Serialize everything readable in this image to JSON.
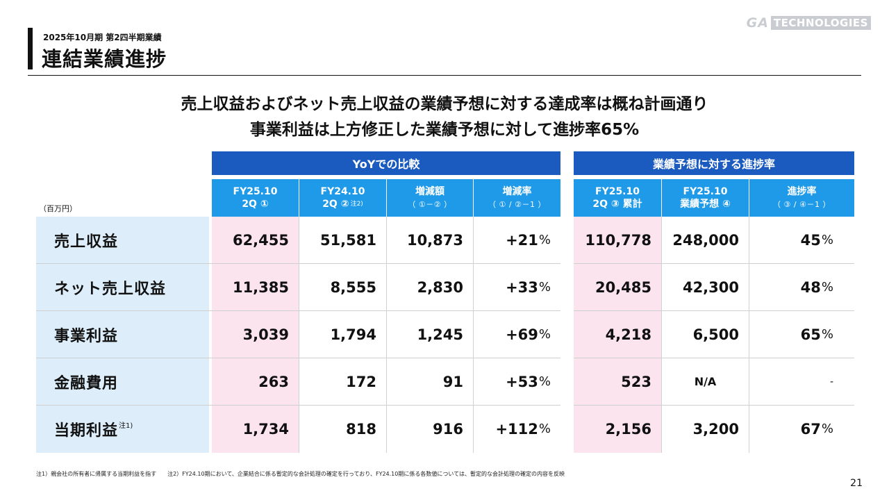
{
  "header": {
    "subtitle": "2025年10月期 第2四半期業績",
    "title": "連結業績進捗",
    "logo_ga": "GA",
    "logo_tech": "TECHNOLOGIES"
  },
  "headline": {
    "line1": "売上収益およびネット売上収益の業績予想に対する達成率は概ね計画通り",
    "line2": "事業利益は上方修正した業績予想に対して進捗率65%"
  },
  "table": {
    "unit": "（百万円）",
    "group_yoy": "YoYでの比較",
    "group_progress": "業績予想に対する進捗率",
    "columns": [
      {
        "line1": "FY25.10",
        "line2": "2Q ①",
        "note": ""
      },
      {
        "line1": "FY24.10",
        "line2": "2Q ②",
        "note": "注2)"
      },
      {
        "line1": "増減額",
        "line2": "（ ①－② ）",
        "note": ""
      },
      {
        "line1": "増減率",
        "line2": "（ ① / ②－1 ）",
        "note": ""
      },
      {
        "line1": "FY25.10",
        "line2": "2Q ③ 累計",
        "note": ""
      },
      {
        "line1": "FY25.10",
        "line2": "業績予想 ④",
        "note": ""
      },
      {
        "line1": "進捗率",
        "line2": "（ ③ / ④－1 ）",
        "note": ""
      }
    ],
    "rows": [
      {
        "label": "売上収益",
        "note": "",
        "values": [
          "62,455",
          "51,581",
          "10,873",
          "+21",
          "110,778",
          "248,000",
          "45"
        ]
      },
      {
        "label": "ネット売上収益",
        "note": "",
        "values": [
          "11,385",
          "8,555",
          "2,830",
          "+33",
          "20,485",
          "42,300",
          "48"
        ]
      },
      {
        "label": "事業利益",
        "note": "",
        "values": [
          "3,039",
          "1,794",
          "1,245",
          "+69",
          "4,218",
          "6,500",
          "65"
        ]
      },
      {
        "label": "金融費用",
        "note": "",
        "values": [
          "263",
          "172",
          "91",
          "+53",
          "523",
          "N/A",
          "-"
        ]
      },
      {
        "label": "当期利益",
        "note": "注1)",
        "values": [
          "1,734",
          "818",
          "916",
          "+112",
          "2,156",
          "3,200",
          "67"
        ]
      }
    ],
    "percent_sign": "%"
  },
  "footnote": "注1）親会社の所有者に帰属する当期利益を指す　　注2）FY24.10期において、企業結合に係る暫定的な会計処理の確定を行っており、FY24.10期に係る各数値については、暫定的な会計処理の確定の内容を反映",
  "page_number": "21",
  "colors": {
    "band": "#1b5bbf",
    "header": "#1e9ae8",
    "row_label_bg": "#ddeefa",
    "highlight_col": "#fce4ef"
  }
}
